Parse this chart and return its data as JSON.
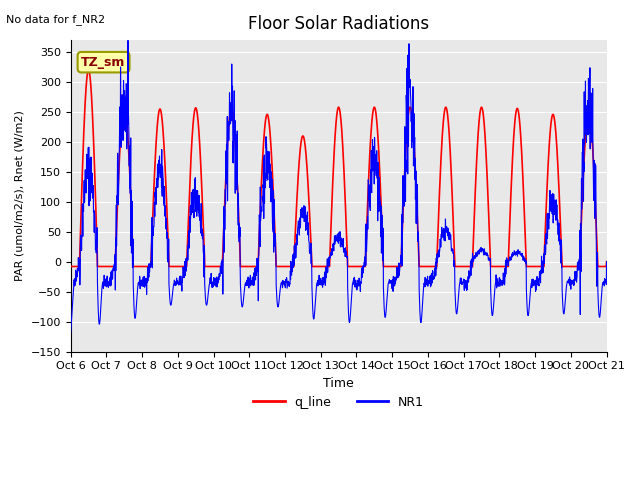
{
  "title": "Floor Solar Radiations",
  "top_left_text": "No data for f_NR2",
  "legend_label_text": "TZ_sm",
  "xlabel": "Time",
  "ylabel": "PAR (umol/m2/s), Rnet (W/m2)",
  "ylim": [
    -150,
    370
  ],
  "yticks": [
    -150,
    -100,
    -50,
    0,
    50,
    100,
    150,
    200,
    250,
    300,
    350
  ],
  "bg_color": "#e8e8e8",
  "red_color": "#ff0000",
  "blue_color": "#0000ff",
  "xtick_labels": [
    "Oct 6",
    "Oct 7",
    "Oct 8",
    "Oct 9",
    "Oct 10",
    "Oct 11",
    "Oct 12",
    "Oct 13",
    "Oct 14",
    "Oct 15",
    "Oct 16",
    "Oct 17",
    "Oct 18",
    "Oct 19",
    "Oct 20",
    "Oct 21"
  ],
  "legend_entries": [
    "q_line",
    "NR1"
  ],
  "n_days": 15,
  "points_per_day": 144,
  "red_peaks": [
    320,
    260,
    255,
    257,
    255,
    246,
    210,
    258,
    258,
    258,
    258,
    258,
    256,
    246,
    248
  ],
  "blue_peaks": [
    155,
    270,
    148,
    113,
    252,
    168,
    80,
    40,
    170,
    270,
    52,
    18,
    16,
    95,
    275
  ],
  "blue_night_min": -35,
  "blue_neg_spikes": [
    -120,
    -103,
    -65,
    -65,
    -70,
    -70,
    -105,
    -115,
    -100,
    -115,
    -90,
    -95,
    -95,
    -90,
    -100
  ],
  "red_night_val": -8
}
